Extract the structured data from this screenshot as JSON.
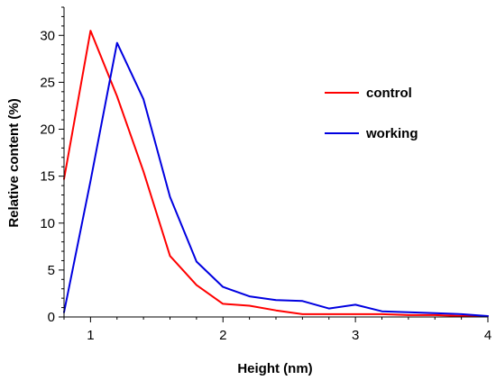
{
  "chart_data": {
    "type": "line",
    "xlabel": "Height (nm)",
    "ylabel": "Relative content (%)",
    "xlim": [
      0.8,
      4
    ],
    "ylim": [
      0,
      33
    ],
    "xticks": [
      1,
      2,
      3,
      4
    ],
    "xtick_labels": [
      "1",
      "2",
      "3",
      "4"
    ],
    "yticks": [
      0,
      5,
      10,
      15,
      20,
      25,
      30
    ],
    "ytick_labels": [
      "0",
      "5",
      "10",
      "15",
      "20",
      "25",
      "30"
    ],
    "grid": false,
    "legend_position": "right",
    "series": [
      {
        "name": "control",
        "color": "#ff0000",
        "x": [
          0.8,
          1.0,
          1.2,
          1.4,
          1.6,
          1.8,
          2.0,
          2.2,
          2.4,
          2.6,
          2.8,
          3.0,
          3.2,
          3.4,
          3.6,
          3.8,
          4.0
        ],
        "y": [
          14.7,
          30.5,
          23.5,
          15.5,
          6.5,
          3.4,
          1.4,
          1.2,
          0.7,
          0.3,
          0.3,
          0.3,
          0.3,
          0.2,
          0.2,
          0.1,
          0.1
        ]
      },
      {
        "name": "working",
        "color": "#0000e0",
        "x": [
          0.8,
          1.0,
          1.2,
          1.4,
          1.6,
          1.8,
          2.0,
          2.2,
          2.4,
          2.6,
          2.8,
          3.0,
          3.2,
          3.4,
          3.6,
          3.8,
          4.0
        ],
        "y": [
          0.5,
          14.5,
          29.2,
          23.2,
          12.8,
          5.9,
          3.2,
          2.2,
          1.8,
          1.7,
          0.9,
          1.3,
          0.6,
          0.5,
          0.4,
          0.3,
          0.1
        ]
      }
    ]
  }
}
